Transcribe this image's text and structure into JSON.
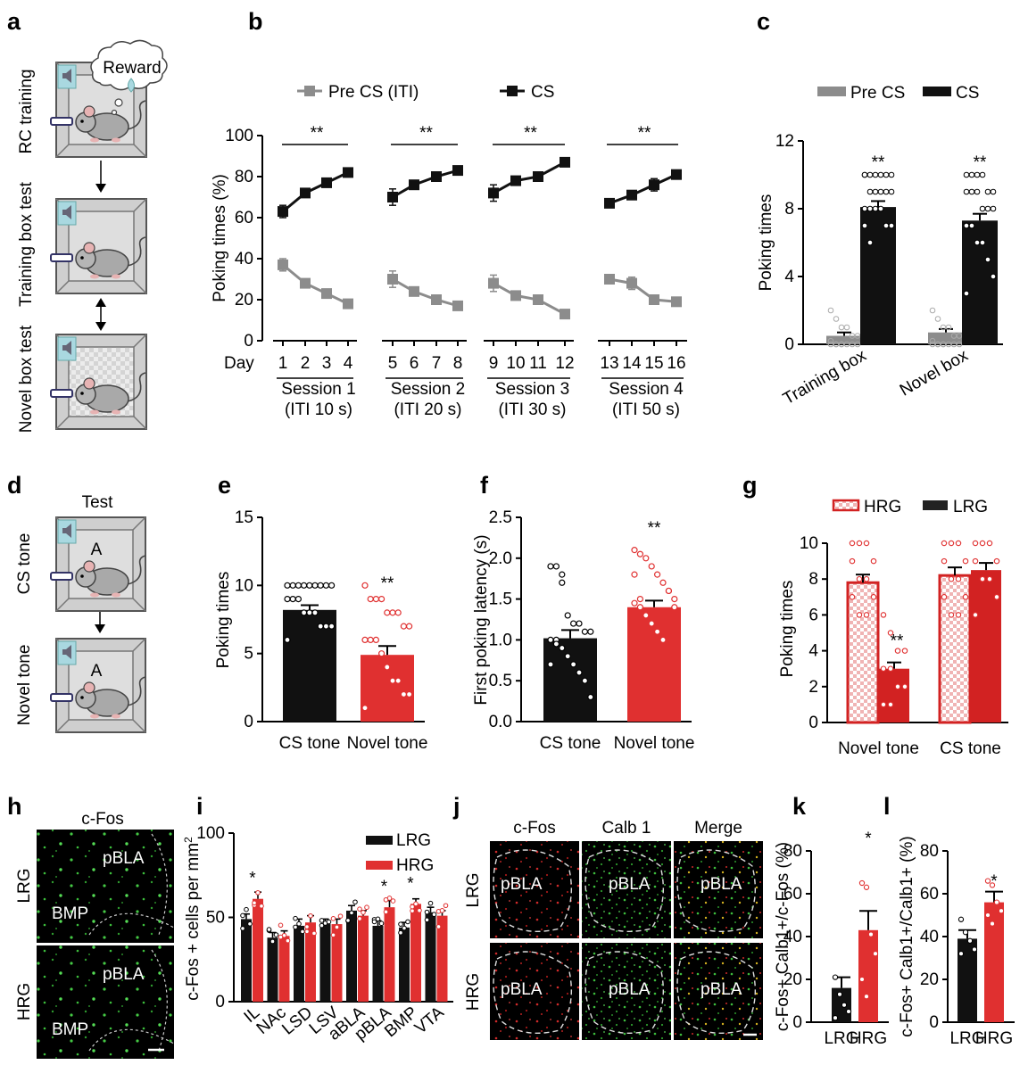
{
  "colors": {
    "black": "#111111",
    "red": "#e03030",
    "gray": "#8c8c8c",
    "darkred": "#d22222"
  },
  "panel_letters": [
    "a",
    "b",
    "c",
    "d",
    "e",
    "f",
    "g",
    "h",
    "i",
    "j",
    "k",
    "l"
  ],
  "panel_a": {
    "labels": [
      "RC training",
      "Training box test",
      "Novel box test"
    ],
    "reward": "Reward"
  },
  "panel_d": {
    "title": "Test",
    "labels": [
      "CS tone",
      "Novel tone"
    ],
    "box_letter": "A"
  },
  "panel_h": {
    "title": "c-Fos",
    "rows": [
      "LRG",
      "HRG"
    ],
    "regions": [
      "pBLA",
      "BMP"
    ]
  },
  "panel_j": {
    "columns": [
      "c-Fos",
      "Calb 1",
      "Merge"
    ],
    "rows": [
      "LRG",
      "HRG"
    ],
    "region": "pBLA"
  },
  "chart_data": [
    {
      "id": "b",
      "type": "line",
      "ylabel": "Poking times (%)",
      "ylim": [
        0,
        100
      ],
      "yticks": [
        0,
        20,
        40,
        60,
        80,
        100
      ],
      "xlabel": "Day",
      "x": [
        1,
        2,
        3,
        4,
        5,
        6,
        7,
        8,
        9,
        10,
        11,
        12,
        13,
        14,
        15,
        16
      ],
      "sessions": [
        {
          "name": "Session 1",
          "iti": "(ITI 10 s)"
        },
        {
          "name": "Session 2",
          "iti": "(ITI 20 s)"
        },
        {
          "name": "Session 3",
          "iti": "(ITI 30 s)"
        },
        {
          "name": "Session 4",
          "iti": "(ITI 50 s)"
        }
      ],
      "series": [
        {
          "name": "Pre CS (ITI)",
          "color": "#8c8c8c",
          "values": [
            37,
            28,
            23,
            18,
            30,
            24,
            20,
            17,
            28,
            22,
            20,
            13,
            30,
            28,
            20,
            19
          ],
          "err": [
            3,
            2,
            2,
            2,
            4,
            2,
            2,
            2,
            4,
            2,
            2,
            2,
            2,
            3,
            2,
            2
          ]
        },
        {
          "name": "CS",
          "color": "#111111",
          "values": [
            63,
            72,
            77,
            82,
            70,
            76,
            80,
            83,
            72,
            78,
            80,
            87,
            67,
            71,
            76,
            81
          ],
          "err": [
            3,
            2,
            2,
            2,
            4,
            2,
            2,
            2,
            4,
            2,
            2,
            2,
            2,
            2,
            3,
            2
          ]
        }
      ],
      "significance": [
        "**",
        "**",
        "**",
        "**"
      ]
    },
    {
      "id": "c",
      "type": "bar",
      "ylabel": "Poking times",
      "ylim": [
        0,
        12
      ],
      "yticks": [
        0,
        4,
        8,
        12
      ],
      "categories": [
        "Training box",
        "Novel box"
      ],
      "series": [
        {
          "name": "Pre CS",
          "color": "#8c8c8c",
          "values": [
            0.5,
            0.7
          ],
          "err": [
            0.2,
            0.2
          ]
        },
        {
          "name": "CS",
          "color": "#111111",
          "values": [
            8.1,
            7.3
          ],
          "err": [
            0.35,
            0.4
          ]
        }
      ],
      "significance": [
        "**",
        "**"
      ]
    },
    {
      "id": "e",
      "type": "bar",
      "ylabel": "Poking times",
      "ylim": [
        0,
        15
      ],
      "yticks": [
        0,
        5,
        10,
        15
      ],
      "categories": [
        "CS tone",
        "Novel tone"
      ],
      "values": [
        8.2,
        4.9
      ],
      "err": [
        0.35,
        0.65
      ],
      "colors": [
        "#111111",
        "#e03030"
      ],
      "significance": [
        "",
        "**"
      ]
    },
    {
      "id": "f",
      "type": "bar",
      "ylabel": "First poking latency (s)",
      "ylim": [
        0,
        2.5
      ],
      "yticks": [
        0.0,
        0.5,
        1.0,
        1.5,
        2.0,
        2.5
      ],
      "categories": [
        "CS tone",
        "Novel tone"
      ],
      "values": [
        1.02,
        1.4
      ],
      "err": [
        0.1,
        0.08
      ],
      "colors": [
        "#111111",
        "#e03030"
      ],
      "significance": [
        "",
        "**"
      ]
    },
    {
      "id": "g",
      "type": "bar",
      "ylabel": "Poking times",
      "ylim": [
        0,
        10
      ],
      "yticks": [
        0,
        2,
        4,
        6,
        8,
        10
      ],
      "categories": [
        "Novel tone",
        "CS tone"
      ],
      "series": [
        {
          "name": "HRG",
          "values": [
            7.8,
            8.2
          ],
          "err": [
            0.45,
            0.45
          ]
        },
        {
          "name": "LRG",
          "values": [
            3.0,
            8.5
          ],
          "err": [
            0.35,
            0.4
          ]
        }
      ],
      "significance": [
        "**",
        ""
      ]
    },
    {
      "id": "i",
      "type": "bar",
      "ylabel": "c-Fos + cells per mm",
      "ylabel_sup": "2",
      "ylim": [
        0,
        100
      ],
      "yticks": [
        0,
        50,
        100
      ],
      "categories": [
        "IL",
        "NAc",
        "LSD",
        "LSV",
        "aBLA",
        "pBLA",
        "BMP",
        "VTA"
      ],
      "series": [
        {
          "name": "LRG",
          "color": "#111111",
          "values": [
            49,
            38,
            45,
            46,
            54,
            45,
            44,
            53
          ],
          "err": [
            3,
            3,
            4,
            3,
            3,
            3,
            3,
            3
          ]
        },
        {
          "name": "HRG",
          "color": "#e03030",
          "values": [
            61,
            39,
            47,
            46,
            51,
            56,
            58,
            51
          ],
          "err": [
            4,
            3,
            4,
            3,
            3,
            4,
            3,
            3
          ]
        }
      ],
      "significance": [
        "*",
        "",
        "",
        "",
        "",
        "*",
        "*",
        ""
      ]
    },
    {
      "id": "k",
      "type": "bar",
      "ylabel": "c-Fos+ Calb1+/c-Fos (%)",
      "ylim": [
        0,
        80
      ],
      "yticks": [
        0,
        20,
        40,
        60,
        80
      ],
      "categories": [
        "LRG",
        "HRG"
      ],
      "values": [
        16,
        43
      ],
      "err": [
        5,
        9
      ],
      "colors": [
        "#111111",
        "#e03030"
      ],
      "significance": [
        "",
        "*"
      ]
    },
    {
      "id": "l",
      "type": "bar",
      "ylabel": "c-Fos+ Calb1+/Calb1+ (%)",
      "ylim": [
        0,
        80
      ],
      "yticks": [
        0,
        20,
        40,
        60,
        80
      ],
      "categories": [
        "LRG",
        "HRG"
      ],
      "values": [
        39,
        56
      ],
      "err": [
        4,
        5
      ],
      "colors": [
        "#111111",
        "#e03030"
      ],
      "significance": [
        "",
        "*"
      ]
    }
  ]
}
